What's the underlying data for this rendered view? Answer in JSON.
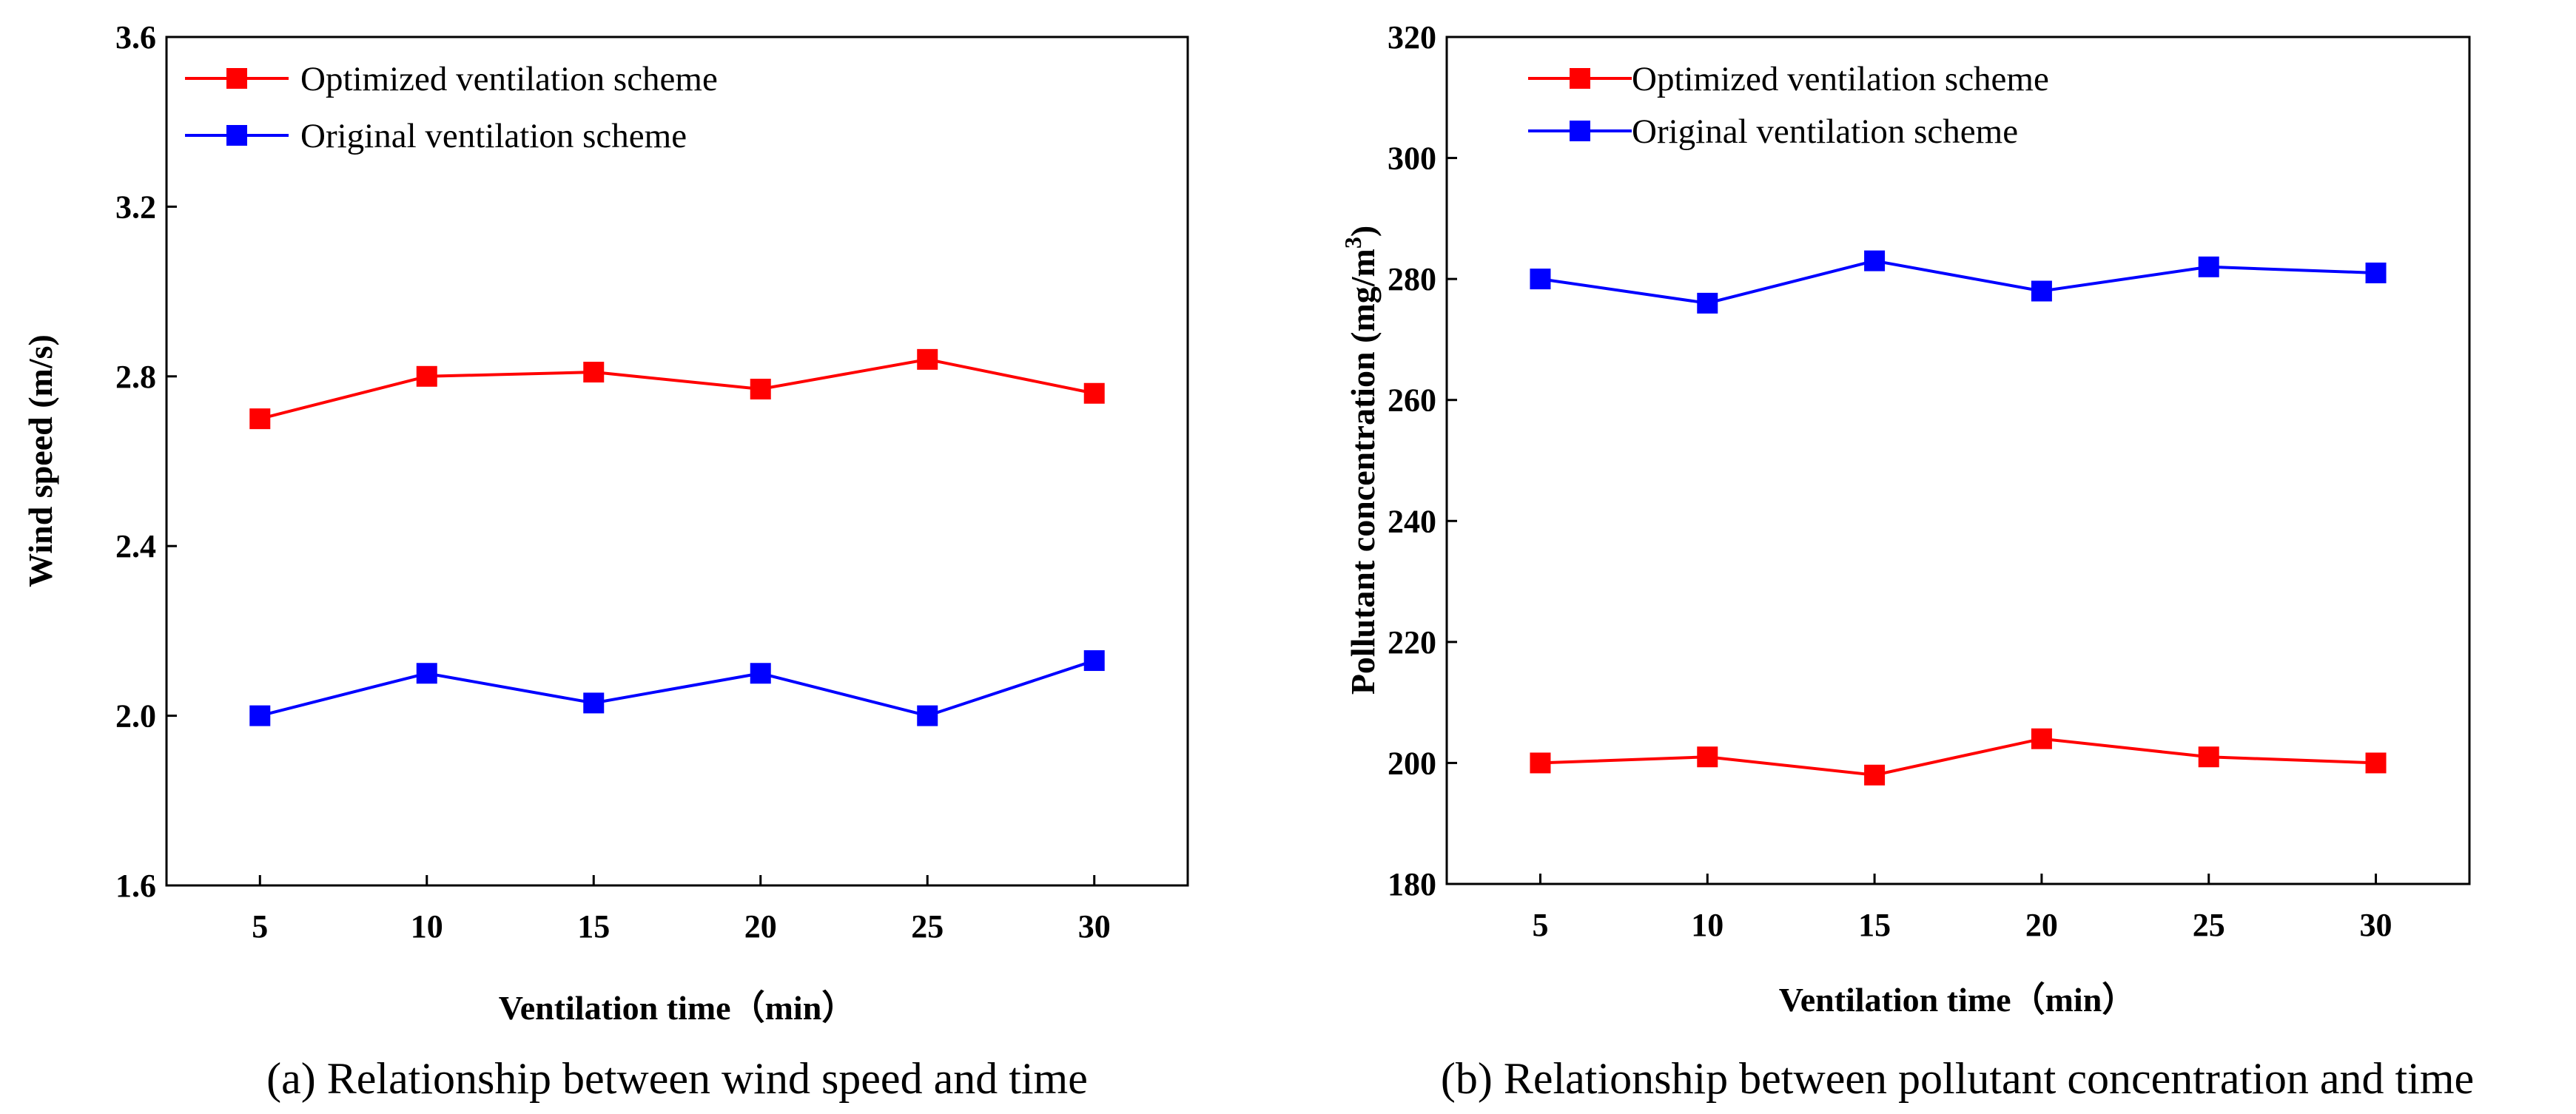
{
  "chart_data": [
    {
      "type": "line",
      "caption": "(a) Relationship between wind speed and time",
      "xlabel": "Ventilation time（min）",
      "ylabel": "Wind speed (m/s)",
      "x": [
        5,
        10,
        15,
        20,
        25,
        30
      ],
      "x_tick_labels": [
        "5",
        "10",
        "15",
        "20",
        "25",
        "30"
      ],
      "xlim": [
        2.2,
        32.8
      ],
      "ylim": [
        1.6,
        3.6
      ],
      "y_ticks": [
        1.6,
        2.0,
        2.4,
        2.8,
        3.2,
        3.6
      ],
      "y_tick_labels": [
        "1.6",
        "2.0",
        "2.4",
        "2.8",
        "3.2",
        "3.6"
      ],
      "grid": false,
      "legend_position": "top-left",
      "series": [
        {
          "name": "Optimized ventilation scheme",
          "color": "#ff0000",
          "marker": "square",
          "values": [
            2.7,
            2.8,
            2.81,
            2.77,
            2.84,
            2.76
          ]
        },
        {
          "name": "Original ventilation scheme",
          "color": "#0000ff",
          "marker": "square",
          "values": [
            2.0,
            2.1,
            2.03,
            2.1,
            2.0,
            2.13
          ]
        }
      ]
    },
    {
      "type": "line",
      "caption": "(b) Relationship between pollutant concentration and time",
      "xlabel": "Ventilation time（min）",
      "ylabel_main": "Pollutant concentration (mg/m",
      "ylabel_superscript": "3",
      "ylabel_close": ")",
      "x": [
        5,
        10,
        15,
        20,
        25,
        30
      ],
      "x_tick_labels": [
        "5",
        "10",
        "15",
        "20",
        "25",
        "30"
      ],
      "xlim": [
        2.2,
        32.8
      ],
      "ylim": [
        180,
        320
      ],
      "y_ticks": [
        180,
        200,
        220,
        240,
        260,
        280,
        300,
        320
      ],
      "y_tick_labels": [
        "180",
        "200",
        "220",
        "240",
        "260",
        "280",
        "300",
        "320"
      ],
      "grid": false,
      "legend_position": "top-left",
      "series": [
        {
          "name": "Optimized ventilation scheme",
          "color": "#ff0000",
          "marker": "square",
          "values": [
            200,
            201,
            198,
            204,
            201,
            200
          ]
        },
        {
          "name": "Original ventilation scheme",
          "color": "#0000ff",
          "marker": "square",
          "values": [
            280,
            276,
            283,
            278,
            282,
            281
          ]
        }
      ]
    }
  ]
}
